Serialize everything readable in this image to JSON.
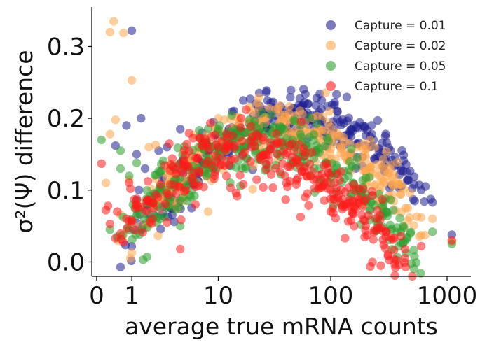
{
  "chart_data": {
    "type": "scatter",
    "title": "",
    "xlabel": "average true mRNA counts",
    "ylabel": "σ²(Ψ) difference",
    "xscale": "symlog",
    "xlim": [
      -0.1,
      1600
    ],
    "ylim": [
      -0.02,
      0.355
    ],
    "xticks": [
      0,
      1,
      10,
      100,
      1000
    ],
    "xtick_labels": [
      "0",
      "1",
      "10",
      "100",
      "1000"
    ],
    "yticks": [
      0.0,
      0.1,
      0.2,
      0.3
    ],
    "ytick_labels": [
      "0.0",
      "0.1",
      "0.2",
      "0.3"
    ],
    "grid": false,
    "legend_position": "top-right",
    "series": [
      {
        "name": "Capture = 0.01",
        "color": "#1f1f8f",
        "peak": 0.205,
        "peak_x": 50,
        "spread": 0.018,
        "points": [
          [
            1.0,
            0.322
          ],
          [
            0.8,
            0.19
          ],
          [
            0.45,
            0.162
          ],
          [
            1.4,
            0.2
          ],
          [
            1.2,
            0.15
          ],
          [
            1.6,
            0.13
          ],
          [
            2.4,
            0.155
          ],
          [
            3.0,
            0.16
          ],
          [
            3.4,
            0.11
          ],
          [
            4.2,
            0.185
          ],
          [
            5.5,
            0.075
          ],
          [
            7.0,
            0.18
          ],
          [
            9.0,
            0.195
          ],
          [
            14.0,
            0.21
          ],
          [
            17.0,
            0.225
          ],
          [
            22.0,
            0.22
          ],
          [
            30.0,
            0.222
          ],
          [
            45.0,
            0.212
          ],
          [
            60.0,
            0.205
          ],
          [
            80.0,
            0.2
          ],
          [
            100.0,
            0.19
          ],
          [
            150.0,
            0.175
          ],
          [
            200.0,
            0.162
          ],
          [
            260.0,
            0.155
          ],
          [
            300.0,
            0.147
          ],
          [
            400.0,
            0.132
          ],
          [
            450.0,
            0.125
          ],
          [
            600.0,
            0.1
          ],
          [
            750.0,
            0.083
          ],
          [
            1100.0,
            0.038
          ],
          [
            1.2,
            0.086
          ],
          [
            1.3,
            0.1
          ]
        ]
      },
      {
        "name": "Capture = 0.02",
        "color": "#ffa64d",
        "peak": 0.188,
        "peak_x": 35,
        "spread": 0.02,
        "points": [
          [
            0.4,
            0.335
          ],
          [
            0.3,
            0.32
          ],
          [
            0.7,
            0.319
          ],
          [
            1.0,
            0.253
          ],
          [
            0.45,
            0.198
          ],
          [
            0.3,
            0.178
          ],
          [
            0.2,
            0.11
          ],
          [
            1.0,
            0.013
          ],
          [
            2.2,
            0.163
          ],
          [
            1.8,
            0.16
          ],
          [
            3.5,
            0.11
          ],
          [
            4.5,
            0.085
          ],
          [
            8.0,
            0.07
          ],
          [
            10.0,
            0.2
          ],
          [
            20.0,
            0.21
          ],
          [
            40.0,
            0.205
          ],
          [
            60.0,
            0.195
          ],
          [
            100.0,
            0.17
          ],
          [
            150.0,
            0.145
          ],
          [
            200.0,
            0.125
          ],
          [
            260.0,
            0.12
          ],
          [
            400.0,
            0.108
          ],
          [
            600.0,
            0.062
          ],
          [
            750.0,
            0.06
          ],
          [
            1100.0,
            0.028
          ],
          [
            0.6,
            0.066
          ],
          [
            0.9,
            0.115
          ]
        ]
      },
      {
        "name": "Capture = 0.05",
        "color": "#2e9e2e",
        "peak": 0.168,
        "peak_x": 25,
        "spread": 0.022,
        "points": [
          [
            0.1,
            0.17
          ],
          [
            0.6,
            0.155
          ],
          [
            1.2,
            0.138
          ],
          [
            0.9,
            0.12
          ],
          [
            0.6,
            0.13
          ],
          [
            0.5,
            0.035
          ],
          [
            0.3,
            0.045
          ],
          [
            1.5,
            0.003
          ],
          [
            1.7,
            0.007
          ],
          [
            2.5,
            0.06
          ],
          [
            4.2,
            0.05
          ],
          [
            5.0,
            0.085
          ],
          [
            10.0,
            0.185
          ],
          [
            20.0,
            0.18
          ],
          [
            40.0,
            0.16
          ],
          [
            80.0,
            0.13
          ],
          [
            100.0,
            0.11
          ],
          [
            150.0,
            0.095
          ],
          [
            200.0,
            0.085
          ],
          [
            300.0,
            0.07
          ],
          [
            400.0,
            0.042
          ],
          [
            750.0,
            0.042
          ],
          [
            1100.0,
            0.025
          ]
        ]
      },
      {
        "name": "Capture = 0.1",
        "color": "#ff1a1a",
        "peak": 0.155,
        "peak_x": 18,
        "spread": 0.022,
        "points": [
          [
            0.1,
            0.137
          ],
          [
            0.25,
            0.078
          ],
          [
            0.2,
            0.072
          ],
          [
            0.3,
            0.053
          ],
          [
            0.5,
            0.07
          ],
          [
            0.45,
            0.033
          ],
          [
            0.8,
            0.06
          ],
          [
            1.0,
            0.058
          ],
          [
            1.1,
            0.087
          ],
          [
            2.0,
            0.06
          ],
          [
            3.0,
            0.055
          ],
          [
            4.2,
            0.018
          ],
          [
            6.0,
            0.08
          ],
          [
            10.0,
            0.16
          ],
          [
            20.0,
            0.16
          ],
          [
            40.0,
            0.12
          ],
          [
            60.0,
            0.09
          ],
          [
            100.0,
            0.07
          ],
          [
            150.0,
            0.058
          ],
          [
            200.0,
            0.05
          ],
          [
            300.0,
            0.042
          ],
          [
            400.0,
            0.036
          ],
          [
            600.0,
            0.022
          ],
          [
            1100.0,
            0.03
          ]
        ]
      }
    ]
  }
}
